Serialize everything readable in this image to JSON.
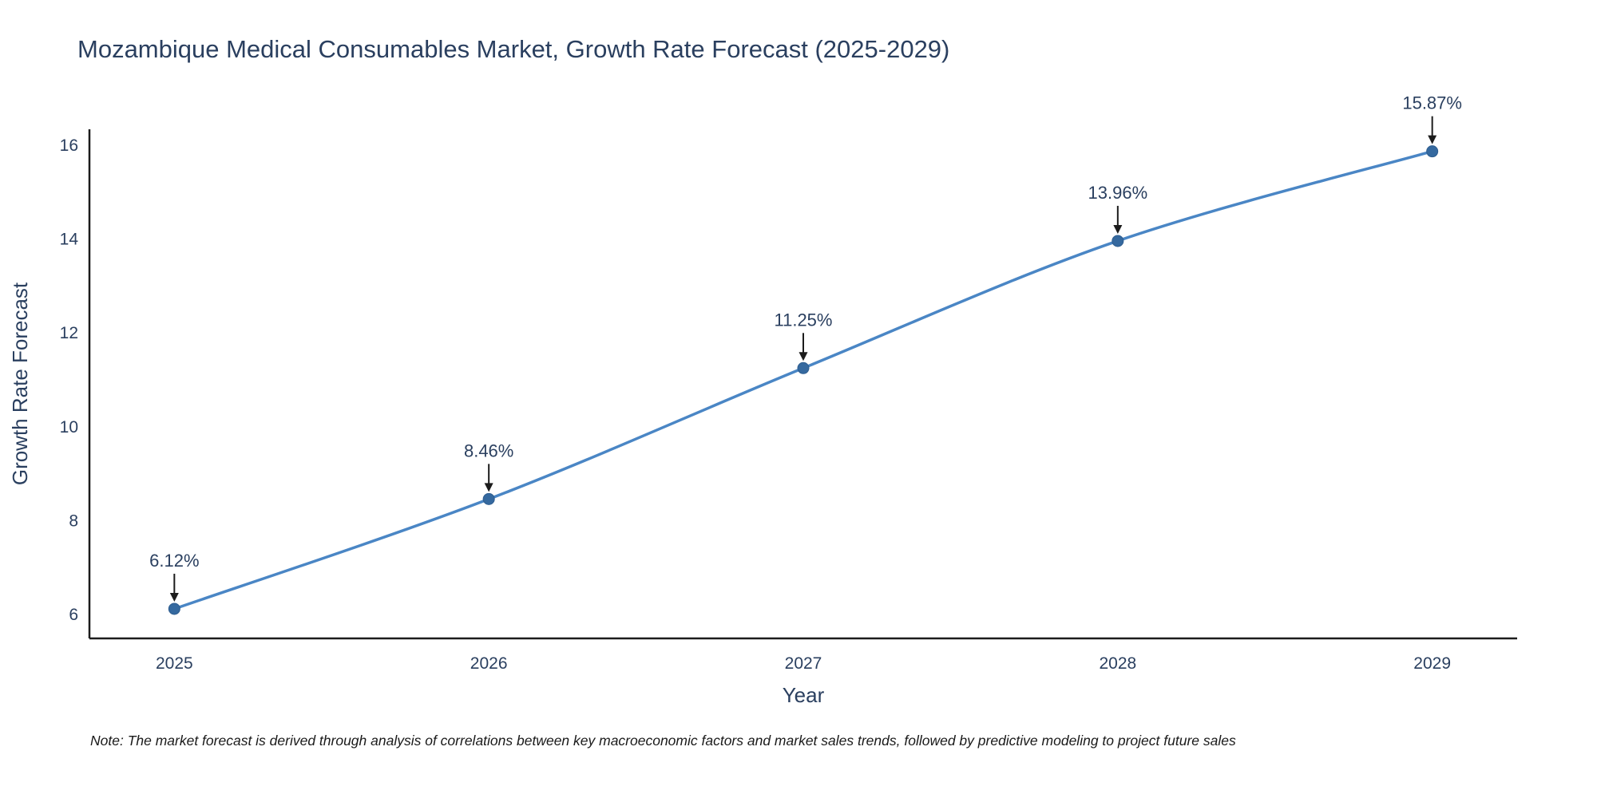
{
  "note": "Note: The market forecast is derived through analysis of correlations between key macroeconomic factors and market sales trends, followed by predictive modeling to project future sales",
  "chart_data": {
    "type": "line",
    "title": "Mozambique Medical Consumables Market, Growth Rate Forecast (2025-2029)",
    "xlabel": "Year",
    "ylabel": "Growth Rate Forecast",
    "x": [
      2025,
      2026,
      2027,
      2028,
      2029
    ],
    "values": [
      6.12,
      8.46,
      11.25,
      13.96,
      15.87
    ],
    "labels": [
      "6.12%",
      "8.46%",
      "11.25%",
      "13.96%",
      "15.87%"
    ],
    "xticks": [
      2025,
      2026,
      2027,
      2028,
      2029
    ],
    "yticks": [
      6,
      8,
      10,
      12,
      14,
      16
    ],
    "xlim": [
      2024.73,
      2029.27
    ],
    "ylim": [
      5.49,
      16.34
    ],
    "line_shape": "spline",
    "grid": false,
    "legend": "none",
    "line_color": "#4a86c5",
    "marker_color": "#35699f",
    "marker_edge_color": "#2e5d8f",
    "marker_size": 7,
    "axis_color": "#1c1c1c",
    "text_color": "#2a3f5f",
    "annotation_color": "#2a3f5f"
  }
}
